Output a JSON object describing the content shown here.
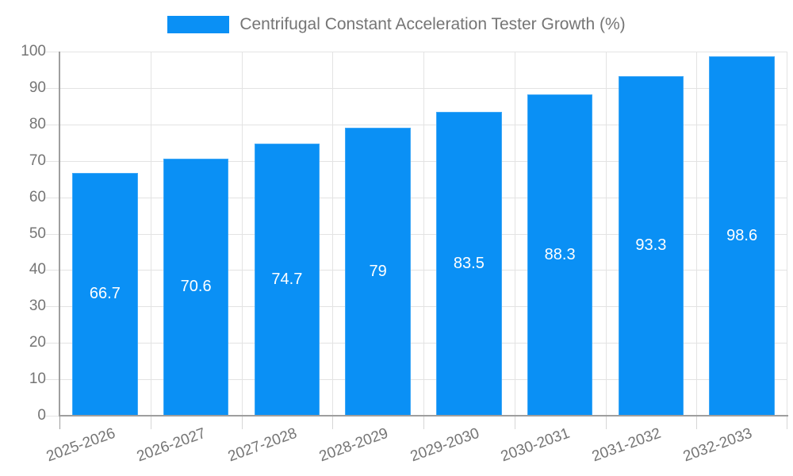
{
  "chart_data": {
    "type": "bar",
    "title": "Centrifugal Constant Acceleration Tester Growth (%)",
    "categories": [
      "2025-2026",
      "2026-2027",
      "2027-2028",
      "2028-2029",
      "2029-2030",
      "2030-2031",
      "2031-2032",
      "2032-2033"
    ],
    "values": [
      66.7,
      70.6,
      74.7,
      79,
      83.5,
      88.3,
      93.3,
      98.6
    ],
    "value_labels": [
      "66.7",
      "70.6",
      "74.7",
      "79",
      "83.5",
      "88.3",
      "93.3",
      "98.6"
    ],
    "xlabel": "",
    "ylabel": "",
    "ylim": [
      0,
      100
    ],
    "yticks": [
      0,
      10,
      20,
      30,
      40,
      50,
      60,
      70,
      80,
      90,
      100
    ],
    "grid": true,
    "legend_position": "top",
    "bar_label_position": "center",
    "x_label_rotation_deg": -20,
    "colors": {
      "bar": "#0a90f5",
      "grid": "#e3e3e3",
      "axis": "#9e9e9e",
      "tick": "#d6d6d6",
      "label": "#757575",
      "value_label": "#ffffff",
      "background": "#ffffff"
    }
  }
}
